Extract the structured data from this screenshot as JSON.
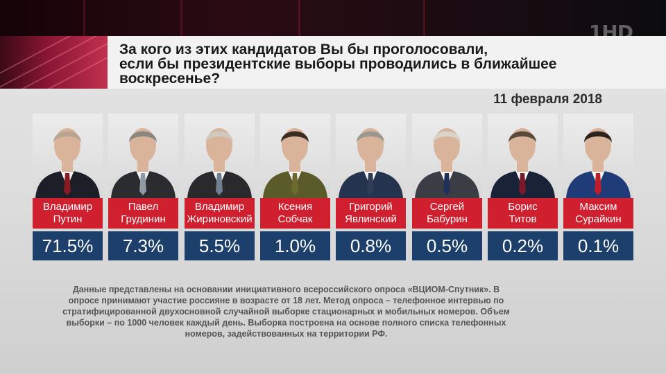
{
  "channel_logo": "1HD",
  "question": "За кого из этих кандидатов Вы бы проголосовали если бы президентские выборы проводились в ближайшее воскресенье?",
  "question_lines": [
    "За кого из этих кандидатов Вы бы проголосовали,",
    "если бы президентские выборы проводились в ближайшее",
    "воскресенье?"
  ],
  "date": "11 февраля 2018",
  "candidates": [
    {
      "first": "Владимир",
      "last": "Путин",
      "percent": "71.5%",
      "suit": "#1c1f27",
      "tie": "#8a1a22",
      "hair": "#b7a58f"
    },
    {
      "first": "Павел",
      "last": "Грудинин",
      "percent": "7.3%",
      "suit": "#2a2c30",
      "tie": "#8f9aa6",
      "hair": "#8a8680"
    },
    {
      "first": "Владимир",
      "last": "Жириновский",
      "percent": "5.5%",
      "suit": "#2a2a2c",
      "tie": "#6f8090",
      "hair": "#cfc9bf"
    },
    {
      "first": "Ксения",
      "last": "Собчак",
      "percent": "1.0%",
      "suit": "#5b5a2a",
      "tie": "#6d6a30",
      "hair": "#3a2a20"
    },
    {
      "first": "Григорий",
      "last": "Явлинский",
      "percent": "0.8%",
      "suit": "#24344f",
      "tie": "#2e3c55",
      "hair": "#9a9890"
    },
    {
      "first": "Сергей",
      "last": "Бабурин",
      "percent": "0.5%",
      "suit": "#3a3d44",
      "tie": "#1f2f55",
      "hair": "#d8d4cc"
    },
    {
      "first": "Борис",
      "last": "Титов",
      "percent": "0.2%",
      "suit": "#1a2238",
      "tie": "#7a1a28",
      "hair": "#5a4a3c"
    },
    {
      "first": "Максим",
      "last": "Сурайкин",
      "percent": "0.1%",
      "suit": "#1f3b78",
      "tie": "#c01d2a",
      "hair": "#2a2420"
    }
  ],
  "footnote": "Данные представлены на основании инициативного всероссийского опроса «ВЦИОМ-Спутник». В опросе принимают участие россияне в возрасте от 18 лет. Метод опроса – телефонное интервью по стратифицированной двухосновной случайной выборке стационарных и мобильных номеров. Объем выборки – по 1000 человек каждый день. Выборка построена на основе полного списка телефонных номеров, задействованных на территории РФ.",
  "colors": {
    "name_red": "#d01f2f",
    "percent_blue": "#1d3f6b",
    "title_panel": "#f2f2f2",
    "background": "#dcdcdc"
  }
}
